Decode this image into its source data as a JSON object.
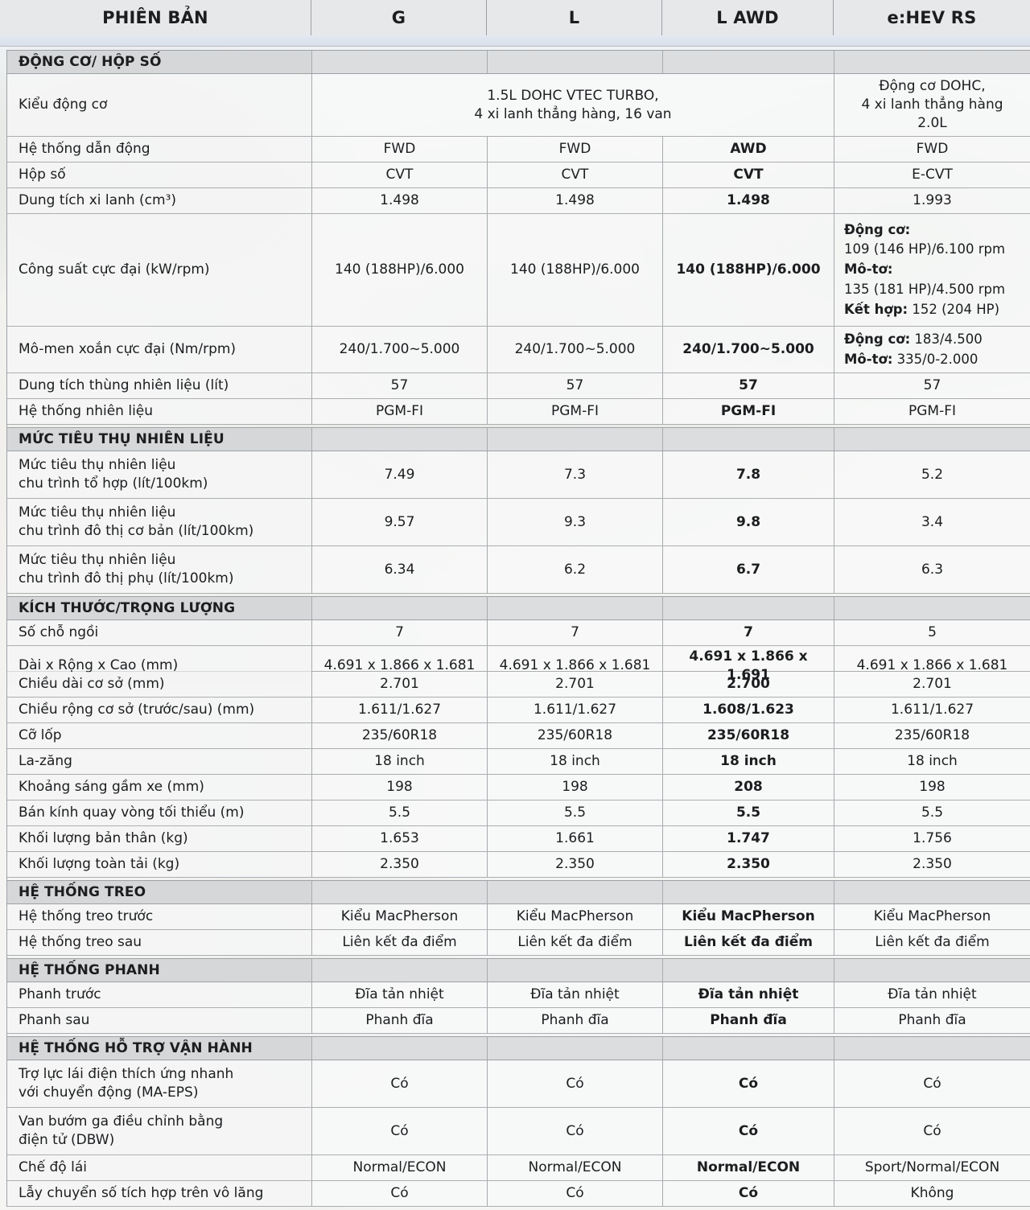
{
  "header": {
    "version_label": "PHIÊN BẢN",
    "variants": [
      "G",
      "L",
      "L AWD",
      "e:HEV RS"
    ]
  },
  "colors": {
    "accent_strip": "#dde4ee",
    "section_bg": "#d5d6d8",
    "header_bg": "#e7e8ea",
    "grid_line": "#9da2a6",
    "text": "#1b1d1f"
  },
  "sections": [
    {
      "title": "ĐỘNG CƠ/ HỘP SỐ",
      "rows": [
        {
          "type": "merged",
          "label": "Kiểu động cơ",
          "merged": "1.5L DOHC VTEC TURBO,\n4 xi lanh thẳng hàng, 16 van",
          "last": "Động cơ DOHC,\n4 xi lanh thẳng hàng\n2.0L"
        },
        {
          "label": "Hệ thống dẫn động",
          "values": [
            "FWD",
            "FWD",
            "AWD",
            "FWD"
          ]
        },
        {
          "label": "Hộp số",
          "values": [
            "CVT",
            "CVT",
            "CVT",
            "E-CVT"
          ]
        },
        {
          "label": "Dung tích xi lanh (cm³)",
          "values": [
            "1.498",
            "1.498",
            "1.498",
            "1.993"
          ]
        },
        {
          "type": "rich",
          "size": "power",
          "label": "Công suất cực đại (kW/rpm)",
          "values": [
            "140 (188HP)/6.000",
            "140 (188HP)/6.000",
            "140 (188HP)/6.000"
          ],
          "last_lines": [
            {
              "b": "Động cơ:",
              "t": ""
            },
            {
              "b": "",
              "t": "109 (146 HP)/6.100 rpm"
            },
            {
              "b": "Mô-tơ:",
              "t": ""
            },
            {
              "b": "",
              "t": "135 (181 HP)/4.500 rpm"
            },
            {
              "b": "Kết hợp:",
              "t": " 152 (204 HP)"
            }
          ]
        },
        {
          "type": "rich",
          "size": "torque",
          "label": "Mô-men xoắn cực đại (Nm/rpm)",
          "values": [
            "240/1.700~5.000",
            "240/1.700~5.000",
            "240/1.700~5.000"
          ],
          "last_lines": [
            {
              "b": "Động cơ:",
              "t": " 183/4.500"
            },
            {
              "b": "Mô-tơ:",
              "t": " 335/0-2.000"
            }
          ]
        },
        {
          "label": "Dung tích thùng nhiên liệu (lít)",
          "values": [
            "57",
            "57",
            "57",
            "57"
          ]
        },
        {
          "label": "Hệ thống nhiên liệu",
          "values": [
            "PGM-FI",
            "PGM-FI",
            "PGM-FI",
            "PGM-FI"
          ]
        }
      ]
    },
    {
      "title": "MỨC TIÊU THỤ NHIÊN LIỆU",
      "rows": [
        {
          "label": "Mức tiêu thụ nhiên liệu\nchu trình tổ hợp (lít/100km)",
          "values": [
            "7.49",
            "7.3",
            "7.8",
            "5.2"
          ]
        },
        {
          "label": "Mức tiêu thụ nhiên liệu\nchu trình đô thị cơ bản (lít/100km)",
          "values": [
            "9.57",
            "9.3",
            "9.8",
            "3.4"
          ]
        },
        {
          "label": "Mức tiêu thụ nhiên liệu\nchu trình đô thị phụ (lít/100km)",
          "values": [
            "6.34",
            "6.2",
            "6.7",
            "6.3"
          ]
        }
      ]
    },
    {
      "title": "KÍCH THƯỚC/TRỌNG LƯỢNG",
      "rows": [
        {
          "label": "Số chỗ ngồi",
          "values": [
            "7",
            "7",
            "7",
            "5"
          ]
        },
        {
          "label": "Dài x Rộng x Cao (mm)",
          "values": [
            "4.691 x 1.866 x 1.681",
            "4.691 x 1.866 x 1.681",
            "4.691 x 1.866 x 1.691",
            "4.691 x 1.866 x 1.681"
          ]
        },
        {
          "label": "Chiều dài cơ sở (mm)",
          "values": [
            "2.701",
            "2.701",
            "2.700",
            "2.701"
          ]
        },
        {
          "label": "Chiều rộng cơ sở (trước/sau) (mm)",
          "values": [
            "1.611/1.627",
            "1.611/1.627",
            "1.608/1.623",
            "1.611/1.627"
          ]
        },
        {
          "label": "Cỡ lốp",
          "values": [
            "235/60R18",
            "235/60R18",
            "235/60R18",
            "235/60R18"
          ]
        },
        {
          "label": "La-zăng",
          "values": [
            "18 inch",
            "18 inch",
            "18 inch",
            "18 inch"
          ]
        },
        {
          "label": "Khoảng sáng gầm xe (mm)",
          "values": [
            "198",
            "198",
            "208",
            "198"
          ]
        },
        {
          "label": "Bán kính quay vòng tối thiểu (m)",
          "values": [
            "5.5",
            "5.5",
            "5.5",
            "5.5"
          ]
        },
        {
          "label": "Khối lượng bản thân (kg)",
          "values": [
            "1.653",
            "1.661",
            "1.747",
            "1.756"
          ]
        },
        {
          "label": "Khối lượng toàn tải (kg)",
          "values": [
            "2.350",
            "2.350",
            "2.350",
            "2.350"
          ]
        }
      ]
    },
    {
      "title": "HỆ THỐNG TREO",
      "rows": [
        {
          "label": "Hệ thống treo trước",
          "values": [
            "Kiểu MacPherson",
            "Kiểu MacPherson",
            "Kiểu MacPherson",
            "Kiểu MacPherson"
          ]
        },
        {
          "label": "Hệ thống treo sau",
          "values": [
            "Liên kết đa điểm",
            "Liên kết đa điểm",
            "Liên kết đa điểm",
            "Liên kết đa điểm"
          ]
        }
      ]
    },
    {
      "title": "HỆ THỐNG PHANH",
      "rows": [
        {
          "label": "Phanh trước",
          "values": [
            "Đĩa tản nhiệt",
            "Đĩa tản nhiệt",
            "Đĩa tản nhiệt",
            "Đĩa tản nhiệt"
          ]
        },
        {
          "label": "Phanh sau",
          "values": [
            "Phanh đĩa",
            "Phanh đĩa",
            "Phanh đĩa",
            "Phanh đĩa"
          ]
        }
      ]
    },
    {
      "title": "HỆ THỐNG HỖ TRỢ VẬN HÀNH",
      "rows": [
        {
          "label": "Trợ lực lái điện thích ứng nhanh\nvới chuyển động (MA-EPS)",
          "values": [
            "Có",
            "Có",
            "Có",
            "Có"
          ]
        },
        {
          "label": "Van bướm ga điều chỉnh bằng\nđiện tử (DBW)",
          "values": [
            "Có",
            "Có",
            "Có",
            "Có"
          ]
        },
        {
          "label": "Chế độ lái",
          "values": [
            "Normal/ECON",
            "Normal/ECON",
            "Normal/ECON",
            "Sport/Normal/ECON"
          ]
        },
        {
          "label": "Lẫy chuyển số tích hợp trên vô lăng",
          "values": [
            "Có",
            "Có",
            "Có",
            "Không"
          ]
        }
      ]
    }
  ]
}
